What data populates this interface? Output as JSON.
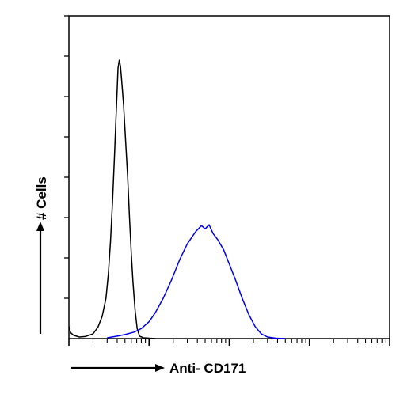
{
  "chart_data": {
    "type": "line",
    "title": "",
    "xlabel": "Anti- CD171",
    "ylabel": "# Cells",
    "x_scale": "log",
    "xlim": [
      1,
      10000
    ],
    "ylim": [
      0,
      8
    ],
    "grid": false,
    "legend": "none",
    "x_tick_labels": [],
    "y_tick_labels": [],
    "series": [
      {
        "color": "#000000",
        "points": [
          [
            1.0,
            0.3
          ],
          [
            1.05,
            0.15
          ],
          [
            1.15,
            0.08
          ],
          [
            1.35,
            0.04
          ],
          [
            1.6,
            0.05
          ],
          [
            2.0,
            0.12
          ],
          [
            2.3,
            0.28
          ],
          [
            2.6,
            0.55
          ],
          [
            2.9,
            1.0
          ],
          [
            3.1,
            1.6
          ],
          [
            3.3,
            2.4
          ],
          [
            3.5,
            3.4
          ],
          [
            3.7,
            4.5
          ],
          [
            3.85,
            5.4
          ],
          [
            4.0,
            6.2
          ],
          [
            4.1,
            6.7
          ],
          [
            4.25,
            6.9
          ],
          [
            4.4,
            6.75
          ],
          [
            4.55,
            6.4
          ],
          [
            4.8,
            5.8
          ],
          [
            5.1,
            4.9
          ],
          [
            5.4,
            4.0
          ],
          [
            5.7,
            3.0
          ],
          [
            6.0,
            2.1
          ],
          [
            6.3,
            1.4
          ],
          [
            6.7,
            0.7
          ],
          [
            7.1,
            0.25
          ],
          [
            7.6,
            0.06
          ],
          [
            8.5,
            0.02
          ],
          [
            12,
            0.0
          ]
        ]
      },
      {
        "color": "#0000ee",
        "points": [
          [
            3.0,
            0.02
          ],
          [
            4.0,
            0.06
          ],
          [
            5.0,
            0.1
          ],
          [
            6.5,
            0.16
          ],
          [
            8.0,
            0.25
          ],
          [
            10.0,
            0.42
          ],
          [
            12.0,
            0.65
          ],
          [
            15.0,
            1.0
          ],
          [
            19.0,
            1.45
          ],
          [
            24.0,
            1.95
          ],
          [
            30.0,
            2.35
          ],
          [
            38.0,
            2.65
          ],
          [
            45.0,
            2.8
          ],
          [
            50.0,
            2.72
          ],
          [
            56.0,
            2.82
          ],
          [
            63.0,
            2.6
          ],
          [
            72.0,
            2.45
          ],
          [
            85.0,
            2.2
          ],
          [
            100.0,
            1.85
          ],
          [
            120.0,
            1.45
          ],
          [
            145.0,
            1.0
          ],
          [
            175.0,
            0.6
          ],
          [
            210.0,
            0.3
          ],
          [
            250.0,
            0.12
          ],
          [
            300.0,
            0.04
          ],
          [
            380.0,
            0.01
          ],
          [
            500.0,
            0.0
          ]
        ]
      }
    ]
  }
}
